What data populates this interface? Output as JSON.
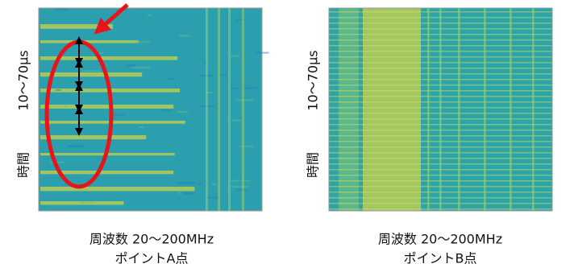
{
  "panels": [
    {
      "y_label_range": "10〜70μs",
      "y_label": "時間",
      "x_label": "周波数 20〜200MHz",
      "caption": "ポイントA点"
    },
    {
      "y_label_range": "10〜70μs",
      "y_label": "時間",
      "x_label": "周波数 20〜200MHz",
      "caption": "ポイントB点"
    }
  ]
}
